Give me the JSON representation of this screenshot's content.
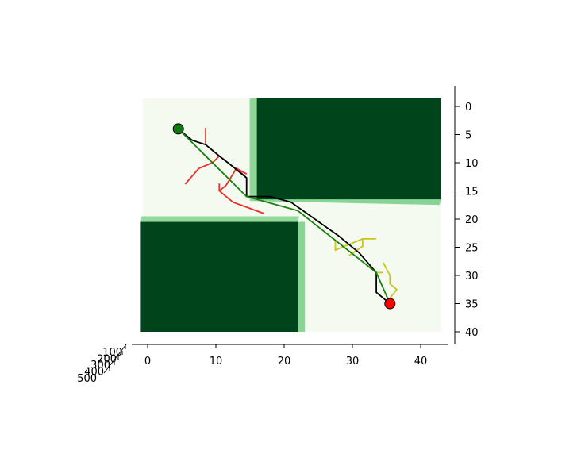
{
  "chart_data": {
    "type": "3d-surface-with-paths",
    "view": "top-down (3D axes viewed from above)",
    "xlim": [
      -1,
      43
    ],
    "ylim": [
      41,
      -1
    ],
    "x_ticks": [
      "0",
      "10",
      "20",
      "30",
      "40"
    ],
    "y_ticks": [
      "0",
      "5",
      "10",
      "15",
      "20",
      "25",
      "30",
      "35",
      "40"
    ],
    "z_ticks": [
      "100",
      "200",
      "300",
      "400",
      "500"
    ],
    "colors": {
      "free_space": "#f4faf0",
      "obstacle": "#00441b",
      "obstacle_edge": "#7ccf8a",
      "tree_start": "#e8302a",
      "tree_goal": "#c8c420",
      "path_raw": "#000000",
      "path_smoothed": "#17800f",
      "start_marker": "#0e7a0e",
      "goal_marker": "#ff0000"
    },
    "start": {
      "x": 4.5,
      "y": 4
    },
    "goal": {
      "x": 35.5,
      "y": 35
    },
    "obstacles": [
      {
        "x_range": [
          16,
          43
        ],
        "y_range": [
          -1.5,
          16.5
        ]
      },
      {
        "x_range": [
          -1,
          22
        ],
        "y_range": [
          20.5,
          40
        ]
      }
    ],
    "path_raw": [
      [
        4.5,
        4
      ],
      [
        6.5,
        6
      ],
      [
        8.5,
        6.8
      ],
      [
        10.5,
        8.8
      ],
      [
        12.5,
        10.7
      ],
      [
        14.5,
        12.7
      ],
      [
        14.5,
        16
      ],
      [
        18,
        16
      ],
      [
        21,
        17
      ],
      [
        24.5,
        20
      ],
      [
        28,
        23
      ],
      [
        31,
        26
      ],
      [
        33.5,
        29.5
      ],
      [
        33.5,
        33
      ],
      [
        35.5,
        35
      ]
    ],
    "path_smoothed": [
      [
        4.5,
        4
      ],
      [
        14.5,
        16
      ],
      [
        22,
        18.5
      ],
      [
        33.5,
        29.5
      ],
      [
        35.5,
        35
      ]
    ],
    "tree_start_edges": [
      [
        [
          8.5,
          3.8
        ],
        [
          8.5,
          6.8
        ]
      ],
      [
        [
          10.5,
          8.8
        ],
        [
          9.5,
          10
        ],
        [
          7.5,
          11
        ],
        [
          5.5,
          13.8
        ]
      ],
      [
        [
          14.5,
          12.7
        ],
        [
          13,
          11
        ],
        [
          12,
          13
        ],
        [
          11.5,
          14
        ],
        [
          10.5,
          15
        ]
      ],
      [
        [
          10.5,
          13.7
        ],
        [
          10.5,
          15
        ],
        [
          12.5,
          17
        ],
        [
          17,
          19
        ]
      ],
      [
        [
          13,
          11
        ],
        [
          14.5,
          12
        ]
      ]
    ],
    "tree_goal_edges": [
      [
        [
          27.5,
          23.8
        ],
        [
          27.5,
          25.5
        ],
        [
          29.5,
          24.5
        ],
        [
          31.5,
          23.5
        ],
        [
          33.5,
          23.5
        ]
      ],
      [
        [
          31.5,
          23.5
        ],
        [
          31.5,
          24.8
        ],
        [
          29.5,
          26.5
        ]
      ],
      [
        [
          33.5,
          29.5
        ],
        [
          34.5,
          29.5
        ]
      ],
      [
        [
          34.5,
          27.7
        ],
        [
          35.5,
          30
        ],
        [
          35.5,
          31.5
        ],
        [
          36.5,
          32.5
        ],
        [
          35.5,
          34
        ]
      ]
    ]
  }
}
